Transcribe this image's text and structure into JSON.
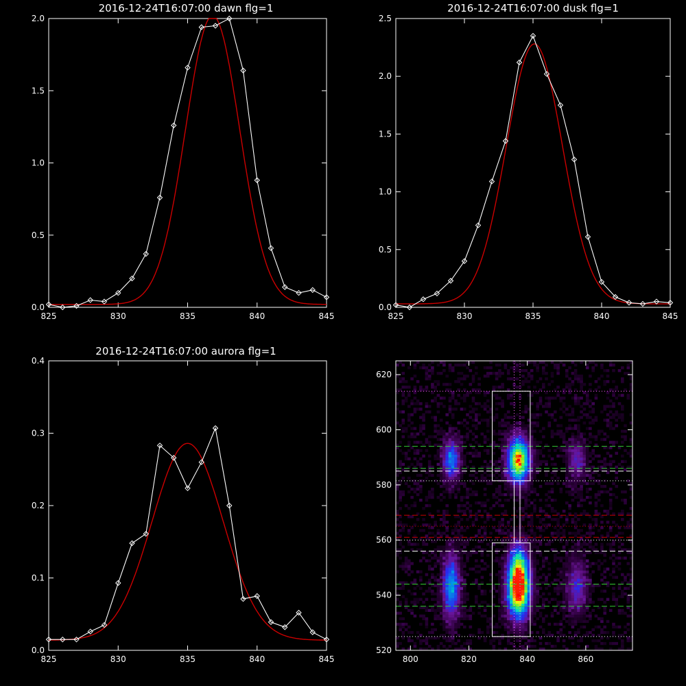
{
  "chart_data": [
    {
      "type": "line",
      "title": "2016-12-24T16:07:00 dawn flg=1",
      "xlim": [
        825,
        845
      ],
      "ylim": [
        0,
        2.0
      ],
      "xticks": [
        "825",
        "830",
        "835",
        "840",
        "845"
      ],
      "yticks": [
        "0.0",
        "0.5",
        "1.0",
        "1.5",
        "2.0"
      ],
      "series": [
        {
          "role": "measured",
          "color": "#ffffff",
          "marker": "diamond",
          "x": [
            825,
            826,
            827,
            828,
            829,
            830,
            831,
            832,
            833,
            834,
            835,
            836,
            837,
            838,
            839,
            840,
            841,
            842,
            843,
            844,
            845
          ],
          "y": [
            0.02,
            0.0,
            0.01,
            0.05,
            0.04,
            0.1,
            0.2,
            0.37,
            0.76,
            1.26,
            1.66,
            1.94,
            1.95,
            2.0,
            1.64,
            0.88,
            0.41,
            0.14,
            0.1,
            0.12,
            0.07
          ]
        },
        {
          "role": "fit",
          "color": "#cc0000",
          "marker": "none",
          "gauss": {
            "amp": 2.0,
            "mu": 836.8,
            "sigma": 1.95,
            "base": 0.02
          }
        }
      ]
    },
    {
      "type": "line",
      "title": "2016-12-24T16:07:00 dusk flg=1",
      "xlim": [
        825,
        845
      ],
      "ylim": [
        0,
        2.5
      ],
      "xticks": [
        "825",
        "830",
        "835",
        "840",
        "845"
      ],
      "yticks": [
        "0.0",
        "0.5",
        "1.0",
        "1.5",
        "2.0",
        "2.5"
      ],
      "series": [
        {
          "role": "measured",
          "color": "#ffffff",
          "marker": "diamond",
          "x": [
            825,
            826,
            827,
            828,
            829,
            830,
            831,
            832,
            833,
            834,
            835,
            836,
            837,
            838,
            839,
            840,
            841,
            842,
            843,
            844,
            845
          ],
          "y": [
            0.02,
            0.0,
            0.07,
            0.12,
            0.23,
            0.4,
            0.71,
            1.09,
            1.44,
            2.12,
            2.35,
            2.02,
            1.75,
            1.28,
            0.61,
            0.22,
            0.09,
            0.04,
            0.03,
            0.05,
            0.04
          ]
        },
        {
          "role": "fit",
          "color": "#cc0000",
          "marker": "none",
          "gauss": {
            "amp": 2.25,
            "mu": 835.1,
            "sigma": 2.05,
            "base": 0.03
          }
        }
      ]
    },
    {
      "type": "line",
      "title": "2016-12-24T16:07:00 aurora flg=1",
      "xlim": [
        825,
        845
      ],
      "ylim": [
        0,
        0.4
      ],
      "xticks": [
        "825",
        "830",
        "835",
        "840",
        "845"
      ],
      "yticks": [
        "0.0",
        "0.1",
        "0.2",
        "0.3",
        "0.4"
      ],
      "series": [
        {
          "role": "measured",
          "color": "#ffffff",
          "marker": "diamond",
          "x": [
            825,
            826,
            827,
            828,
            829,
            830,
            831,
            832,
            833,
            834,
            835,
            836,
            837,
            838,
            839,
            840,
            841,
            842,
            843,
            844,
            845
          ],
          "y": [
            0.015,
            0.015,
            0.015,
            0.026,
            0.035,
            0.093,
            0.148,
            0.161,
            0.283,
            0.266,
            0.224,
            0.26,
            0.307,
            0.2,
            0.071,
            0.075,
            0.039,
            0.032,
            0.052,
            0.025,
            0.015
          ]
        },
        {
          "role": "fit",
          "color": "#cc0000",
          "marker": "none",
          "gauss": {
            "amp": 0.272,
            "mu": 835.0,
            "sigma": 2.55,
            "base": 0.014
          }
        }
      ]
    },
    {
      "type": "heatmap",
      "xlim": [
        795,
        876
      ],
      "ylim": [
        520,
        625
      ],
      "xticks": [
        "800",
        "820",
        "840",
        "860"
      ],
      "yticks": [
        "520",
        "540",
        "560",
        "580",
        "600",
        "620"
      ],
      "blobs": [
        {
          "x": 837,
          "y": 589,
          "sx": 2.6,
          "sy": 5.5,
          "a": 0.95
        },
        {
          "x": 837,
          "y": 541,
          "sx": 2.6,
          "sy": 6.5,
          "a": 1.0
        },
        {
          "x": 837,
          "y": 551,
          "sx": 2.4,
          "sy": 6.0,
          "a": 0.55
        },
        {
          "x": 814,
          "y": 589,
          "sx": 2.0,
          "sy": 5.0,
          "a": 0.5
        },
        {
          "x": 814,
          "y": 543,
          "sx": 2.0,
          "sy": 8.0,
          "a": 0.55
        },
        {
          "x": 857,
          "y": 589,
          "sx": 2.2,
          "sy": 5.0,
          "a": 0.28
        },
        {
          "x": 857,
          "y": 543,
          "sx": 2.4,
          "sy": 7.0,
          "a": 0.3
        }
      ],
      "rects": [
        {
          "x0": 828,
          "x1": 841,
          "y0": 581.5,
          "y1": 614,
          "color": "#ffffff"
        },
        {
          "x0": 828,
          "x1": 841,
          "y0": 525,
          "y1": 559,
          "color": "#ffffff"
        },
        {
          "x0": 835.5,
          "x1": 837.5,
          "y0": 559,
          "y1": 581.5,
          "color": "#ffffff"
        }
      ],
      "hlines": [
        {
          "y": 614,
          "color": "#ff66ff",
          "style": "dotted"
        },
        {
          "y": 581.5,
          "color": "#ffffff",
          "style": "dotted"
        },
        {
          "y": 525,
          "color": "#ffffff",
          "style": "dotted"
        },
        {
          "y": 594,
          "color": "#33cc33",
          "style": "dashed"
        },
        {
          "y": 586,
          "color": "#33cc33",
          "style": "dashed"
        },
        {
          "y": 585,
          "color": "#ffffff",
          "style": "dashed"
        },
        {
          "y": 569,
          "color": "#cc0000",
          "style": "dashed"
        },
        {
          "y": 565,
          "color": "#cc0000",
          "style": "dotted"
        },
        {
          "y": 561,
          "color": "#cc0000",
          "style": "dashed"
        },
        {
          "y": 560,
          "color": "#ffffff",
          "style": "dotted"
        },
        {
          "y": 556,
          "color": "#ffffff",
          "style": "dashed"
        },
        {
          "y": 544,
          "color": "#33cc33",
          "style": "dashed"
        },
        {
          "y": 536,
          "color": "#33cc33",
          "style": "dashed"
        }
      ],
      "vlines": [
        {
          "x": 835.5,
          "color": "#ff66ff",
          "style": "dotted"
        },
        {
          "x": 837.5,
          "color": "#ff66ff",
          "style": "dotted"
        }
      ],
      "peaks": [
        {
          "x": 837,
          "y": 589,
          "color": "#ff0000"
        },
        {
          "x": 837,
          "y": 540,
          "color": "#ff0000"
        }
      ]
    }
  ]
}
